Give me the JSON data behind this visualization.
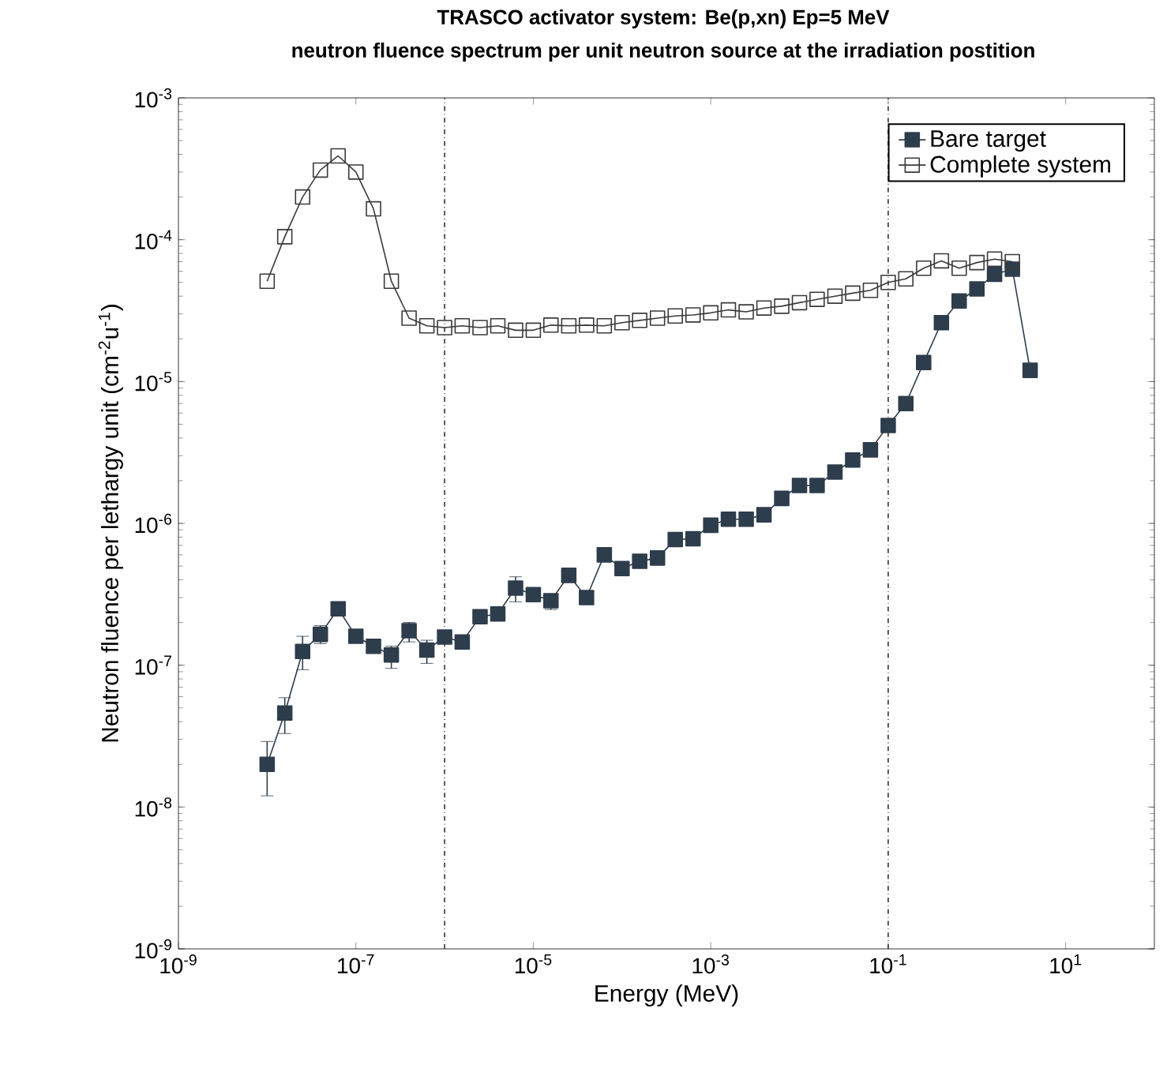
{
  "chart_data": {
    "type": "line",
    "title": "TRASCO activator system: Be(p,xn)  Ep=5 MeV",
    "subtitle": "neutron fluence spectrum per unit neutron source at the irradiation postition",
    "xlabel": "Energy (MeV)",
    "ylabel": "Neutron fluence per lethargy unit (cm$^{-2}$u$^{-1}$)",
    "log": "xy",
    "marker": "square",
    "line_style": "solid",
    "legend": "top right",
    "grid": false,
    "xlim": [
      1e-09,
      100
    ],
    "ylim": [
      1e-09,
      0.001
    ],
    "xticks": [
      {
        "value": 1e-09,
        "label": "10$^{-9}$"
      },
      {
        "value": 1e-07,
        "label": "10$^{-7}$"
      },
      {
        "value": 1e-05,
        "label": "10$^{-5}$"
      },
      {
        "value": 0.001,
        "label": "10$^{-3}$"
      },
      {
        "value": 0.1,
        "label": "10$^{-1}$"
      },
      {
        "value": 10,
        "label": "10$^{1}$"
      }
    ],
    "yticks": [
      {
        "value": 1e-09,
        "label": "10$^{-9}$"
      },
      {
        "value": 1e-08,
        "label": "10$^{-8}$"
      },
      {
        "value": 1e-07,
        "label": "10$^{-7}$"
      },
      {
        "value": 1e-06,
        "label": "10$^{-6}$"
      },
      {
        "value": 1e-05,
        "label": "10$^{-5}$"
      },
      {
        "value": 0.0001,
        "label": "10$^{-4}$"
      },
      {
        "value": 0.001,
        "label": "10$^{-3}$"
      }
    ],
    "ref_lines": [
      {
        "axis": "x",
        "value": 1e-06,
        "line_style": "dashdot",
        "color": "#333333"
      },
      {
        "axis": "x",
        "value": 0.1,
        "line_style": "dashdot",
        "color": "#333333"
      }
    ],
    "series": [
      {
        "name": "Bare target",
        "color": "#2e3d4c",
        "x": [
          1e-08,
          1.58e-08,
          2.51e-08,
          3.98e-08,
          6.31e-08,
          1e-07,
          1.58e-07,
          2.51e-07,
          3.98e-07,
          6.31e-07,
          1e-06,
          1.58e-06,
          2.51e-06,
          3.98e-06,
          6.31e-06,
          1e-05,
          1.58e-05,
          2.51e-05,
          3.98e-05,
          6.31e-05,
          0.0001,
          0.000158,
          0.000251,
          0.000398,
          0.000631,
          0.001,
          0.00158,
          0.00251,
          0.00398,
          0.00631,
          0.01,
          0.0158,
          0.0251,
          0.0398,
          0.0631,
          0.1,
          0.158,
          0.251,
          0.398,
          0.631,
          1,
          1.58,
          2.51,
          3.98
        ],
        "values": [
          2e-08,
          4.6e-08,
          1.25e-07,
          1.65e-07,
          2.5e-07,
          1.6e-07,
          1.36e-07,
          1.18e-07,
          1.75e-07,
          1.28e-07,
          1.58e-07,
          1.46e-07,
          2.2e-07,
          2.3e-07,
          3.5e-07,
          3.15e-07,
          2.85e-07,
          4.3e-07,
          3e-07,
          6e-07,
          4.8e-07,
          5.4e-07,
          5.7e-07,
          7.7e-07,
          7.8e-07,
          9.7e-07,
          1.07e-06,
          1.07e-06,
          1.15e-06,
          1.5e-06,
          1.85e-06,
          1.85e-06,
          2.3e-06,
          2.8e-06,
          3.3e-06,
          4.9e-06,
          7e-06,
          1.36e-05,
          2.6e-05,
          3.7e-05,
          4.5e-05,
          5.7e-05,
          6.2e-05,
          1.2e-05
        ],
        "errors": [
          [
            1.2e-08,
            2.9e-08
          ],
          [
            3.3e-08,
            5.9e-08
          ],
          [
            9.3e-08,
            1.6e-07
          ],
          [
            1.42e-07,
            1.9e-07
          ],
          null,
          null,
          null,
          [
            9.5e-08,
            1.36e-07
          ],
          [
            1.46e-07,
            2e-07
          ],
          [
            1.03e-07,
            1.5e-07
          ],
          null,
          null,
          null,
          null,
          [
            2.8e-07,
            4.2e-07
          ],
          null,
          [
            2.47e-07,
            3.15e-07
          ],
          null,
          null,
          null,
          null,
          null,
          null,
          null,
          null,
          null,
          null,
          null,
          null,
          null,
          null,
          null,
          null,
          null,
          null,
          null,
          null,
          null,
          null,
          null,
          null,
          null,
          null,
          null
        ]
      },
      {
        "name": "Complete system",
        "color": "#3a3a3a",
        "x": [
          1e-08,
          1.58e-08,
          2.51e-08,
          3.98e-08,
          6.31e-08,
          1e-07,
          1.58e-07,
          2.51e-07,
          3.98e-07,
          6.31e-07,
          1e-06,
          1.58e-06,
          2.51e-06,
          3.98e-06,
          6.31e-06,
          1e-05,
          1.58e-05,
          2.51e-05,
          3.98e-05,
          6.31e-05,
          0.0001,
          0.000158,
          0.000251,
          0.000398,
          0.000631,
          0.001,
          0.00158,
          0.00251,
          0.00398,
          0.00631,
          0.01,
          0.0158,
          0.0251,
          0.0398,
          0.0631,
          0.1,
          0.158,
          0.251,
          0.398,
          0.631,
          1,
          1.58,
          2.51
        ],
        "values": [
          5.1e-05,
          0.000105,
          0.0002,
          0.00031,
          0.00039,
          0.0003,
          0.000165,
          5.1e-05,
          2.8e-05,
          2.47e-05,
          2.4e-05,
          2.47e-05,
          2.4e-05,
          2.47e-05,
          2.3e-05,
          2.3e-05,
          2.5e-05,
          2.47e-05,
          2.5e-05,
          2.47e-05,
          2.6e-05,
          2.7e-05,
          2.8e-05,
          2.9e-05,
          2.95e-05,
          3.05e-05,
          3.2e-05,
          3.1e-05,
          3.3e-05,
          3.4e-05,
          3.6e-05,
          3.8e-05,
          4e-05,
          4.2e-05,
          4.4e-05,
          5e-05,
          5.3e-05,
          6.3e-05,
          7.1e-05,
          6.3e-05,
          6.9e-05,
          7.3e-05,
          7e-05
        ]
      }
    ]
  }
}
